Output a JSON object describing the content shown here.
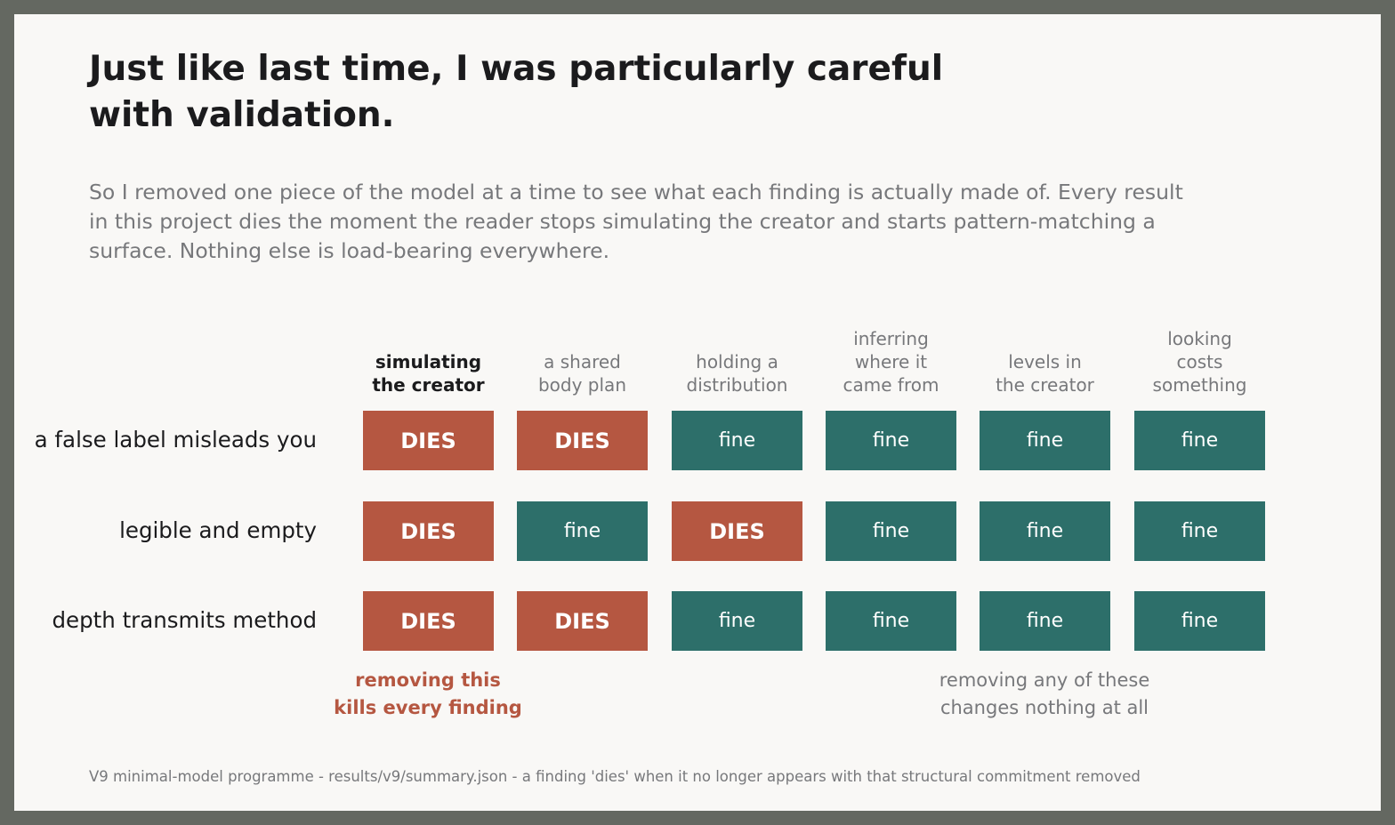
{
  "title": "Just like last time, I was particularly careful with validation.",
  "subtitle": "So I removed one piece of the model at a time to see what each finding is actually made of. Every result in this project dies the moment the reader stops simulating the creator and starts pattern-matching a surface. Nothing else is load-bearing everywhere.",
  "chart_data": {
    "type": "table",
    "columns": [
      [
        "simulating",
        "the creator"
      ],
      [
        "a shared",
        "body plan"
      ],
      [
        "holding a",
        "distribution"
      ],
      [
        "inferring",
        "where it",
        "came from"
      ],
      [
        "levels in",
        "the creator"
      ],
      [
        "looking",
        "costs",
        "something"
      ]
    ],
    "highlighted_column": 0,
    "rows": [
      {
        "label": "a false label misleads you",
        "cells": [
          "DIES",
          "DIES",
          "fine",
          "fine",
          "fine",
          "fine"
        ]
      },
      {
        "label": "legible and empty",
        "cells": [
          "DIES",
          "fine",
          "DIES",
          "fine",
          "fine",
          "fine"
        ]
      },
      {
        "label": "depth transmits method",
        "cells": [
          "DIES",
          "DIES",
          "fine",
          "fine",
          "fine",
          "fine"
        ]
      }
    ],
    "annotations": {
      "left": [
        "removing this",
        "kills every finding"
      ],
      "right": [
        "removing any of these",
        "changes nothing at all"
      ]
    },
    "colors": {
      "dies": "#b55741",
      "fine": "#2d6f6a"
    }
  },
  "footer": "V9 minimal-model programme - results/v9/summary.json - a finding 'dies' when it no longer appears with that structural commitment removed"
}
